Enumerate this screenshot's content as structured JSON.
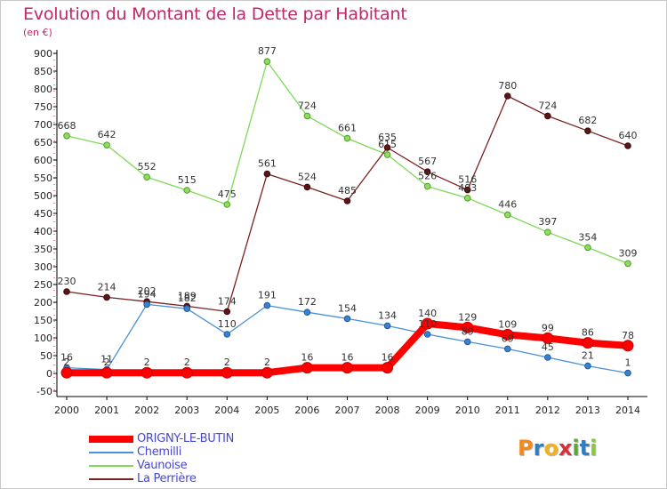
{
  "title": "Evolution du Montant de la Dette par Habitant",
  "subtitle": "(en €)",
  "logo": {
    "text": "Proxiti",
    "letters": [
      {
        "ch": "P",
        "color": "#f08a1e"
      },
      {
        "ch": "r",
        "color": "#2c7fc5"
      },
      {
        "ch": "o",
        "color": "#f3b11c"
      },
      {
        "ch": "x",
        "color": "#d6313a"
      },
      {
        "ch": "i",
        "color": "#5aa83c"
      },
      {
        "ch": "t",
        "color": "#2c7fc5"
      },
      {
        "ch": "i",
        "color": "#8cc63f"
      }
    ]
  },
  "chart_data": {
    "type": "line",
    "x": [
      "2000",
      "2001",
      "2002",
      "2003",
      "2004",
      "2005",
      "2006",
      "2007",
      "2008",
      "2009",
      "2010",
      "2011",
      "2012",
      "2013",
      "2014"
    ],
    "yticks": [
      -50,
      0,
      50,
      100,
      150,
      200,
      250,
      300,
      350,
      400,
      450,
      500,
      550,
      600,
      650,
      700,
      750,
      800,
      850,
      900
    ],
    "ylim": [
      -50,
      900
    ],
    "grid": false,
    "legend": "bottom-left",
    "series": [
      {
        "name": "ORIGNY-LE-BUTIN",
        "color": "#ff0000",
        "values": [
          2,
          2,
          2,
          2,
          2,
          2,
          16,
          16,
          16,
          140,
          129,
          109,
          99,
          86,
          78
        ]
      },
      {
        "name": "Chemilli",
        "color": "#4a90d9",
        "values": [
          16,
          11,
          194,
          182,
          110,
          191,
          172,
          154,
          134,
          110,
          89,
          69,
          45,
          21,
          1
        ]
      },
      {
        "name": "Vaunoise",
        "color": "#7ed957",
        "values": [
          668,
          642,
          552,
          515,
          475,
          877,
          724,
          661,
          615,
          526,
          493,
          446,
          397,
          354,
          309
        ]
      },
      {
        "name": "La Perrière",
        "color": "#7b2020",
        "values": [
          230,
          214,
          202,
          189,
          174,
          561,
          524,
          485,
          635,
          567,
          516,
          780,
          724,
          682,
          640
        ]
      }
    ]
  }
}
